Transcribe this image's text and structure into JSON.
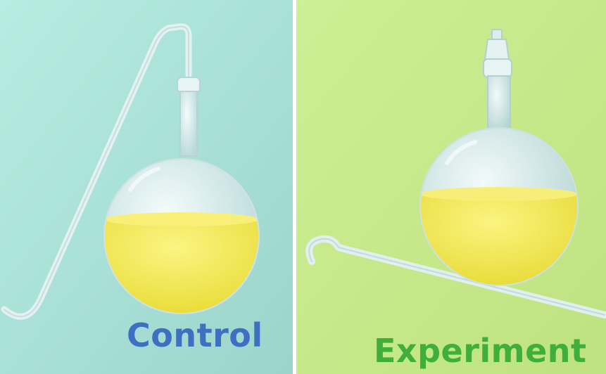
{
  "panels": {
    "left": {
      "caption": "Control",
      "background": "#a9e0d6",
      "caption_color": "#3f6fc0",
      "flask_icon": "swan-neck-flask-icon"
    },
    "right": {
      "caption": "Experiment",
      "background": "#c7e88b",
      "caption_color": "#3fae3a",
      "flask_icon": "broken-neck-flask-icon"
    }
  },
  "colors": {
    "broth": "#f1e84a",
    "glass": "#dfeeee"
  }
}
